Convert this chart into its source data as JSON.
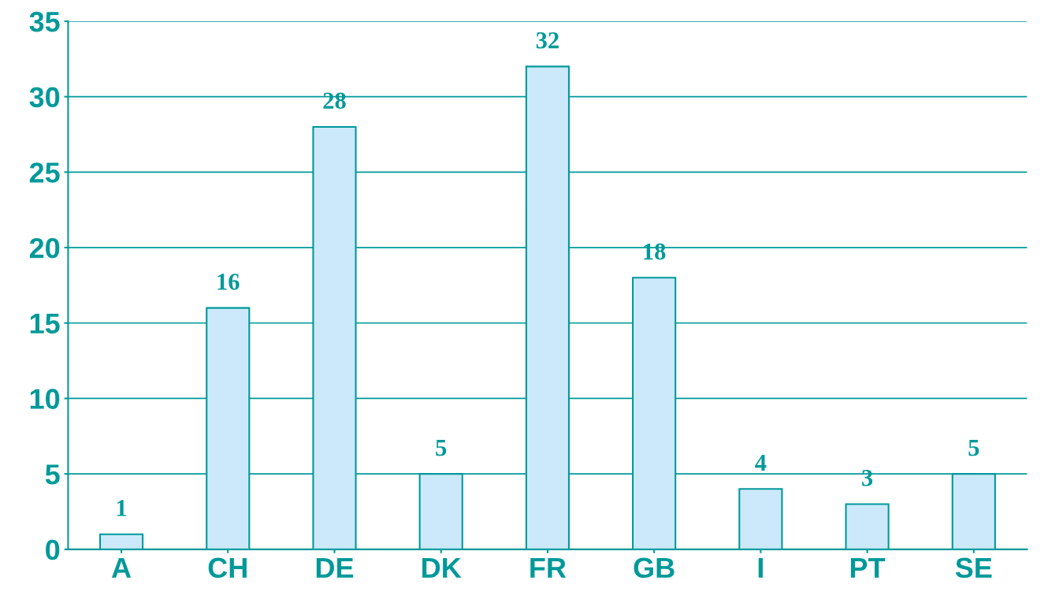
{
  "chart_data": {
    "type": "bar",
    "categories": [
      "A",
      "CH",
      "DE",
      "DK",
      "FR",
      "GB",
      "I",
      "PT",
      "SE"
    ],
    "values": [
      1,
      16,
      28,
      5,
      32,
      18,
      4,
      3,
      5
    ],
    "color": "#cce9fb",
    "ylim": [
      0,
      35
    ],
    "yticks": [
      0,
      5,
      10,
      15,
      20,
      25,
      30,
      35
    ],
    "grid": "y",
    "data_labels": true
  }
}
